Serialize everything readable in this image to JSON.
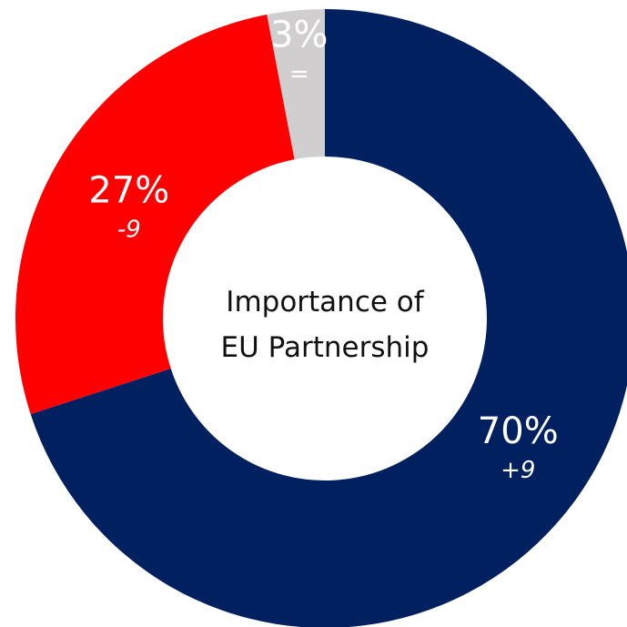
{
  "chart_data": {
    "type": "pie",
    "donut": true,
    "center_label": [
      "Importance of",
      "EU Partnership"
    ],
    "slices": [
      {
        "value": 70,
        "label": "70%",
        "change": "+9",
        "color": "#012060"
      },
      {
        "value": 27,
        "label": "27%",
        "change": "-9",
        "color": "#ff0000"
      },
      {
        "value": 3,
        "label": "3%",
        "change": "=",
        "color": "#d0cece"
      }
    ],
    "start_position": "top",
    "direction": "clockwise"
  }
}
